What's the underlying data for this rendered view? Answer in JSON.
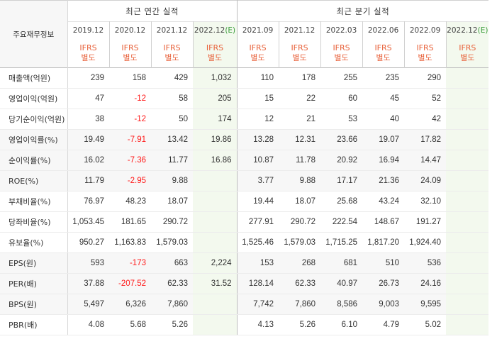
{
  "header": {
    "row_label": "주요재무정보",
    "annual_title": "최근 연간 실적",
    "quarter_title": "최근 분기 실적"
  },
  "annual_periods": [
    "2019.12",
    "2020.12",
    "2021.12",
    "2022.12"
  ],
  "annual_estimate_suffix": "(E)",
  "quarter_periods": [
    "2021.09",
    "2021.12",
    "2022.03",
    "2022.06",
    "2022.09",
    "2022.12"
  ],
  "quarter_estimate_suffix": "(E)",
  "ifrs_label": "IFRS",
  "basis_label": "별도",
  "rows": [
    {
      "label": "매출액(억원)",
      "annual": [
        "239",
        "158",
        "429",
        "1,032"
      ],
      "quarter": [
        "110",
        "178",
        "255",
        "235",
        "290",
        ""
      ]
    },
    {
      "label": "영업이익(억원)",
      "annual": [
        "47",
        "-12",
        "58",
        "205"
      ],
      "quarter": [
        "15",
        "22",
        "60",
        "45",
        "52",
        ""
      ]
    },
    {
      "label": "당기순이익(억원)",
      "annual": [
        "38",
        "-12",
        "50",
        "174"
      ],
      "quarter": [
        "12",
        "21",
        "53",
        "40",
        "42",
        ""
      ]
    },
    {
      "label": "영업이익률(%)",
      "annual": [
        "19.49",
        "-7.91",
        "13.42",
        "19.86"
      ],
      "quarter": [
        "13.28",
        "12.31",
        "23.66",
        "19.07",
        "17.82",
        ""
      ]
    },
    {
      "label": "순이익률(%)",
      "annual": [
        "16.02",
        "-7.36",
        "11.77",
        "16.86"
      ],
      "quarter": [
        "10.87",
        "11.78",
        "20.92",
        "16.94",
        "14.47",
        ""
      ]
    },
    {
      "label": "ROE(%)",
      "annual": [
        "11.79",
        "-2.95",
        "9.88",
        ""
      ],
      "quarter": [
        "3.77",
        "9.88",
        "17.17",
        "21.36",
        "24.09",
        ""
      ]
    },
    {
      "label": "부채비율(%)",
      "annual": [
        "76.97",
        "48.23",
        "18.07",
        ""
      ],
      "quarter": [
        "19.44",
        "18.07",
        "25.68",
        "43.24",
        "32.10",
        ""
      ]
    },
    {
      "label": "당좌비율(%)",
      "annual": [
        "1,053.45",
        "181.65",
        "290.72",
        ""
      ],
      "quarter": [
        "277.91",
        "290.72",
        "222.54",
        "148.67",
        "191.27",
        ""
      ]
    },
    {
      "label": "유보율(%)",
      "annual": [
        "950.27",
        "1,163.83",
        "1,579.03",
        ""
      ],
      "quarter": [
        "1,525.46",
        "1,579.03",
        "1,715.25",
        "1,817.20",
        "1,924.40",
        ""
      ]
    },
    {
      "label": "EPS(원)",
      "annual": [
        "593",
        "-173",
        "663",
        "2,224"
      ],
      "quarter": [
        "153",
        "268",
        "681",
        "510",
        "536",
        ""
      ]
    },
    {
      "label": "PER(배)",
      "annual": [
        "37.88",
        "-207.52",
        "62.33",
        "31.52"
      ],
      "quarter": [
        "128.14",
        "62.33",
        "40.97",
        "26.73",
        "24.16",
        ""
      ]
    },
    {
      "label": "BPS(원)",
      "annual": [
        "5,497",
        "6,326",
        "7,860",
        ""
      ],
      "quarter": [
        "7,742",
        "7,860",
        "8,586",
        "9,003",
        "9,595",
        ""
      ]
    },
    {
      "label": "PBR(배)",
      "annual": [
        "4.08",
        "5.68",
        "5.26",
        ""
      ],
      "quarter": [
        "4.13",
        "5.26",
        "6.10",
        "4.79",
        "5.02",
        ""
      ]
    }
  ]
}
